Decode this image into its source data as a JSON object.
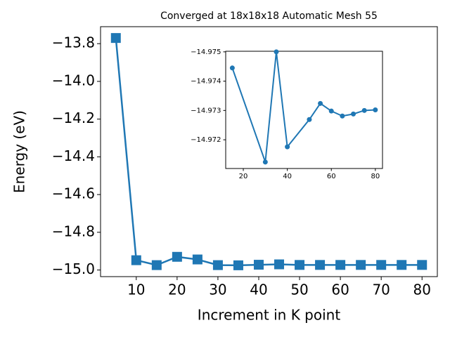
{
  "chart_data": [
    {
      "type": "line",
      "title": "Converged at 18x18x18 Automatic Mesh 55",
      "x_label": "Increment in K point",
      "y_label": "Energy (eV)",
      "marker": "square",
      "color": "#1f77b4",
      "x": [
        5,
        10,
        15,
        20,
        25,
        30,
        35,
        40,
        45,
        50,
        55,
        60,
        65,
        70,
        75,
        80
      ],
      "values": [
        -13.77,
        -14.948,
        -14.974,
        -14.93,
        -14.944,
        -14.974,
        -14.975,
        -14.972,
        -14.97,
        -14.973,
        -14.973,
        -14.973,
        -14.973,
        -14.973,
        -14.973,
        -14.973
      ],
      "xlim": [
        1.25,
        83.75
      ],
      "ylim": [
        -15.035,
        -13.71
      ],
      "xticks": [
        10,
        20,
        30,
        40,
        50,
        60,
        70,
        80
      ],
      "yticks": [
        {
          "value": -15.0,
          "label": "−15.0"
        },
        {
          "value": -14.8,
          "label": "−14.8"
        },
        {
          "value": -14.6,
          "label": "−14.6"
        },
        {
          "value": -14.4,
          "label": "−14.4"
        },
        {
          "value": -14.2,
          "label": "−14.2"
        },
        {
          "value": -14.0,
          "label": "−14.0"
        },
        {
          "value": -13.8,
          "label": "−13.8"
        }
      ]
    },
    {
      "type": "line",
      "marker": "circle",
      "color": "#1f77b4",
      "x": [
        15,
        30,
        35,
        40,
        50,
        55,
        60,
        65,
        70,
        75,
        80
      ],
      "values": [
        -14.97445,
        -14.97124,
        -14.975,
        -14.97176,
        -14.97269,
        -14.97324,
        -14.97298,
        -14.97281,
        -14.97288,
        -14.973,
        -14.97302
      ],
      "xlim": [
        12,
        83.25
      ],
      "ylim": [
        -14.97102,
        -14.97502
      ],
      "xticks": [
        20,
        40,
        60,
        80
      ],
      "yticks": [
        {
          "value": -14.972,
          "label": "−14.972"
        },
        {
          "value": -14.973,
          "label": "−14.973"
        },
        {
          "value": -14.974,
          "label": "−14.974"
        },
        {
          "value": -14.975,
          "label": "−14.975"
        }
      ]
    }
  ]
}
